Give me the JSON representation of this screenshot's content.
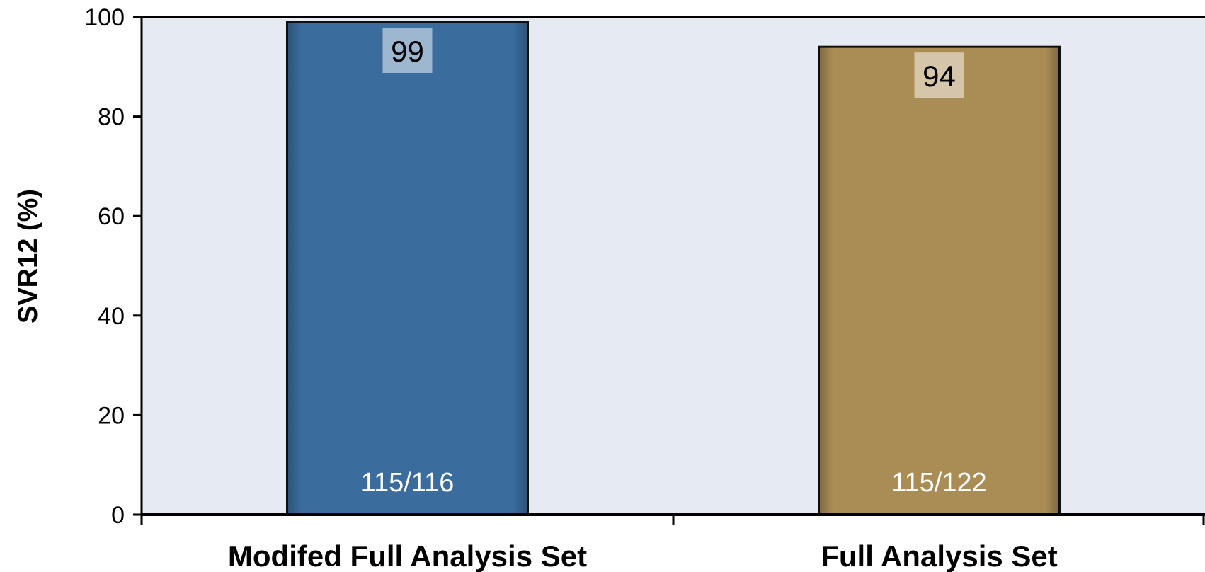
{
  "chart_data": {
    "type": "bar",
    "categories": [
      "Modifed Full Analysis Set",
      "Full Analysis Set"
    ],
    "values": [
      99,
      94
    ],
    "value_labels": [
      "99",
      "94"
    ],
    "n_labels": [
      "115/116",
      "115/122"
    ],
    "colors": [
      "#3b6c9e",
      "#aa8c55"
    ],
    "plot_background": "#e6eaf2",
    "title": "",
    "xlabel": "",
    "ylabel": "SVR12 (%)",
    "ylim": [
      0,
      100
    ],
    "yticks": [
      0,
      20,
      40,
      60,
      80,
      100
    ],
    "grid": false,
    "legend": "none"
  }
}
